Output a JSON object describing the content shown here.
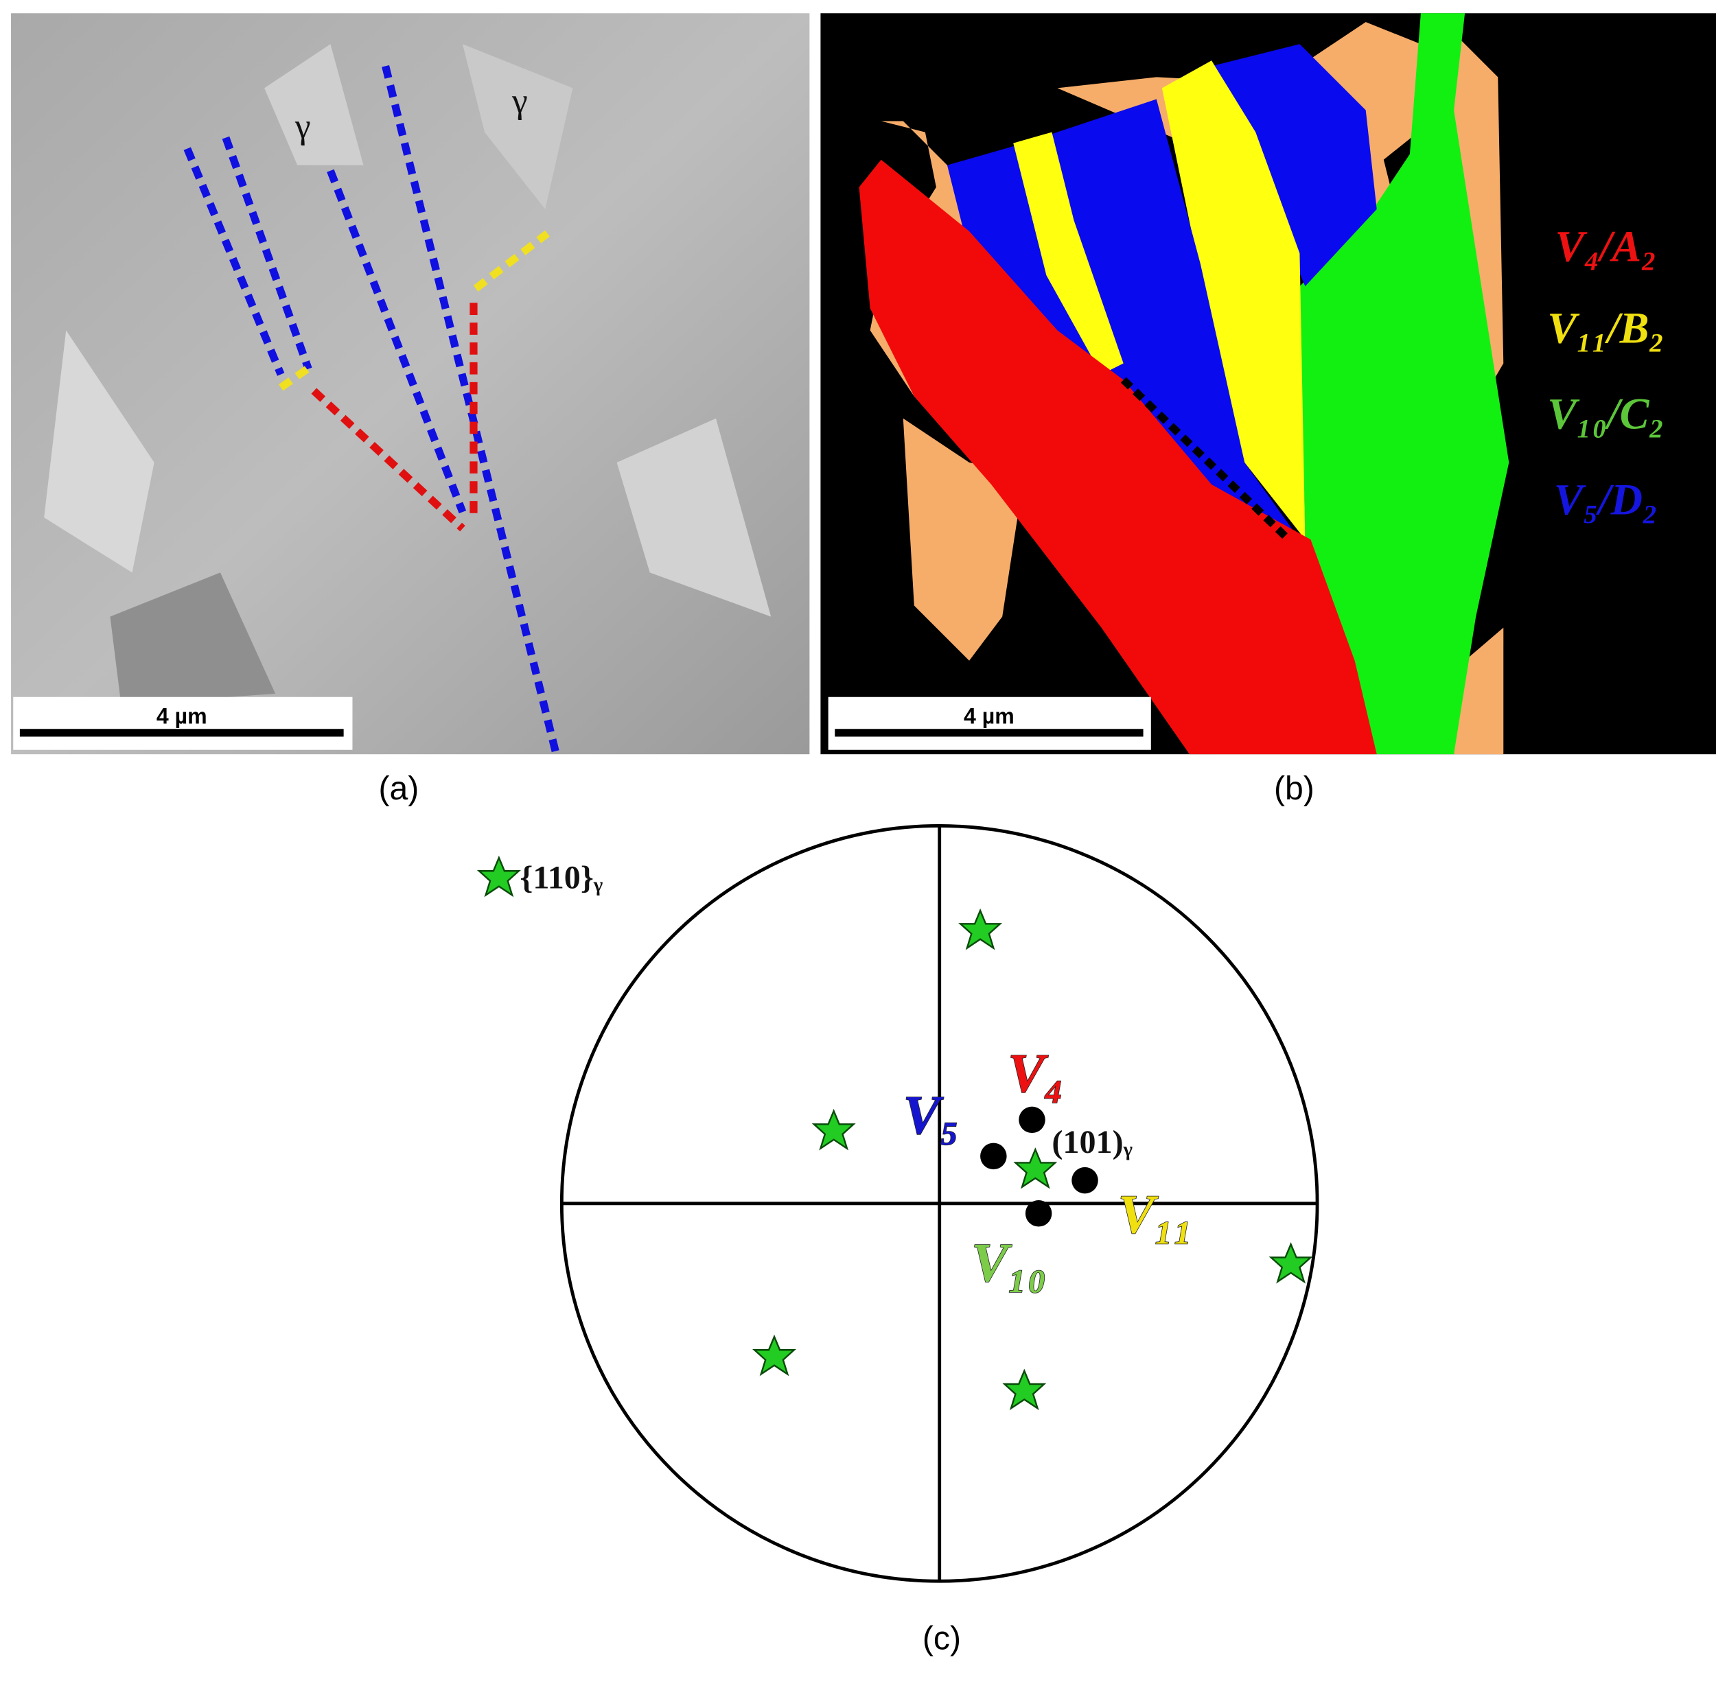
{
  "panel_a": {
    "grain_labels": [
      "γ",
      "γ"
    ],
    "scale_bar": "4 µm",
    "caption": "(a)"
  },
  "panel_b": {
    "scale_bar": "4 µm",
    "caption": "(b)",
    "legend": [
      "V₄/A₂",
      "V₁₁/B₂",
      "V₁₀/C₂",
      "V₅/D₂"
    ]
  },
  "panel_c": {
    "caption": "(c)",
    "legend": "{110}ᵧ",
    "pole": "(101)ᵧ",
    "variants": [
      "V₄",
      "V₅",
      "V₁₀",
      "V₁₁"
    ]
  }
}
